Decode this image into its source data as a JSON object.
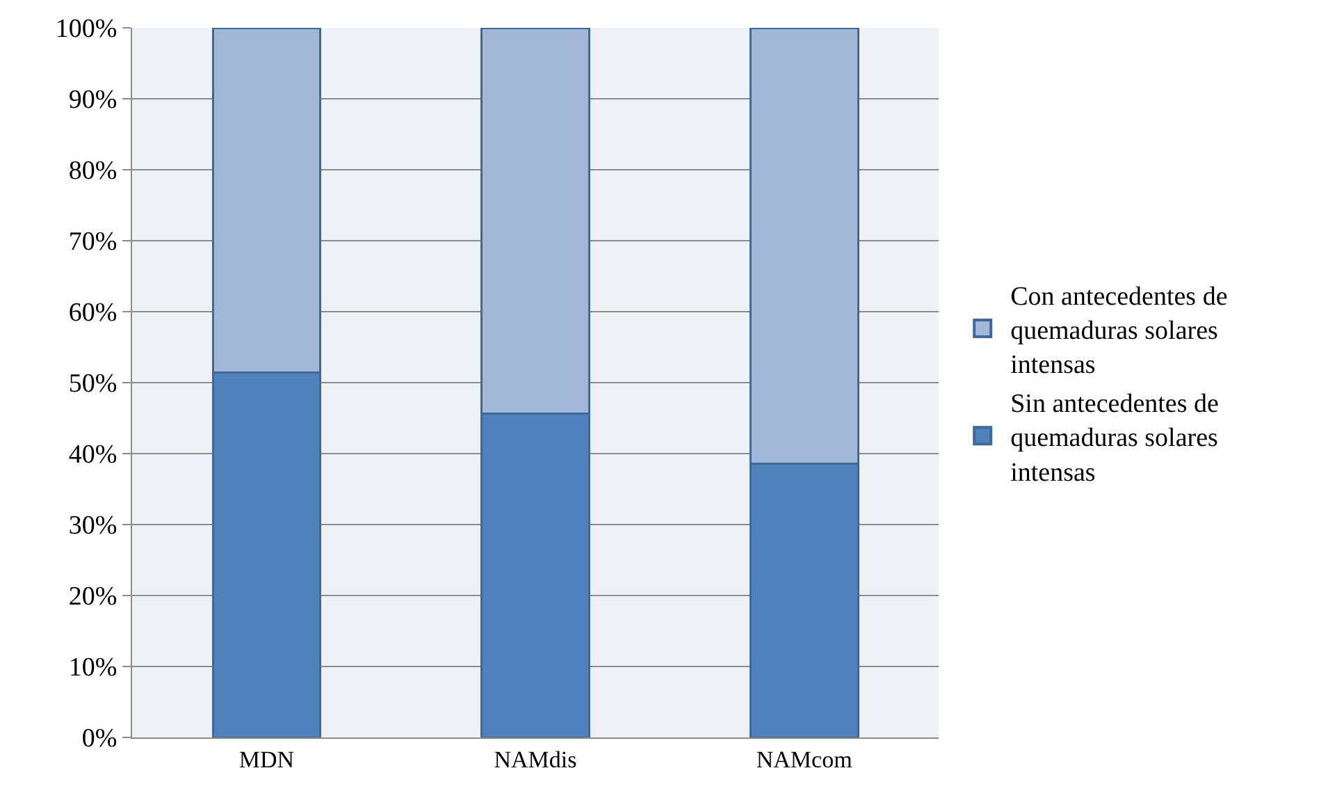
{
  "chart_data": {
    "type": "bar",
    "stacked": true,
    "categories": [
      "MDN",
      "NAMdis",
      "NAMcom"
    ],
    "series": [
      {
        "name": "Sin antecedentes de quemaduras solares intensas",
        "color": "#4f81bd",
        "values": [
          51.4,
          45.6,
          38.6
        ]
      },
      {
        "name": "Con antecedentes de quemaduras solares intensas",
        "color": "#a3b8d9",
        "values": [
          48.6,
          54.4,
          61.4
        ]
      }
    ],
    "ylim": [
      0,
      100
    ],
    "yticks": [
      {
        "value": 0,
        "label": "0%"
      },
      {
        "value": 10,
        "label": "10%"
      },
      {
        "value": 20,
        "label": "20%"
      },
      {
        "value": 30,
        "label": "30%"
      },
      {
        "value": 40,
        "label": "40%"
      },
      {
        "value": 50,
        "label": "50%"
      },
      {
        "value": 60,
        "label": "60%"
      },
      {
        "value": 70,
        "label": "70%"
      },
      {
        "value": 80,
        "label": "80%"
      },
      {
        "value": 90,
        "label": "90%"
      },
      {
        "value": 100,
        "label": "100%"
      }
    ],
    "grid": "y",
    "legend": "right"
  }
}
